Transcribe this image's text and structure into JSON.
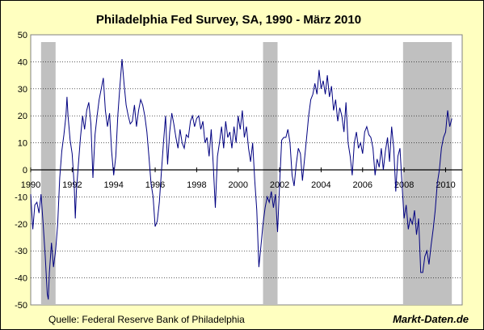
{
  "chart_data": {
    "type": "line",
    "title": "Philadelphia Fed Survey, SA, 1990 - März 2010",
    "xlabel": "",
    "ylabel": "",
    "xlim": [
      1990,
      2010.8
    ],
    "ylim": [
      -50,
      50
    ],
    "x_ticks": [
      "1990",
      "1992",
      "1994",
      "1996",
      "1998",
      "2000",
      "2002",
      "2004",
      "2006",
      "2008",
      "2010"
    ],
    "y_ticks": [
      "50",
      "40",
      "30",
      "20",
      "10",
      "0",
      "-10",
      "-20",
      "-30",
      "-40",
      "-50"
    ],
    "grid": true,
    "legend": "none",
    "recessions": [
      [
        1990.5,
        1991.2
      ],
      [
        2001.2,
        2001.9
      ],
      [
        2007.95,
        2010.3
      ]
    ],
    "series": [
      {
        "color": "#000080",
        "points": [
          [
            1990.0,
            -9
          ],
          [
            1990.1,
            -22
          ],
          [
            1990.2,
            -13
          ],
          [
            1990.3,
            -12
          ],
          [
            1990.4,
            -16
          ],
          [
            1990.5,
            -9
          ],
          [
            1990.6,
            -20
          ],
          [
            1990.7,
            -32
          ],
          [
            1990.8,
            -46
          ],
          [
            1990.85,
            -48
          ],
          [
            1990.9,
            -38
          ],
          [
            1991.0,
            -27
          ],
          [
            1991.1,
            -36
          ],
          [
            1991.2,
            -30
          ],
          [
            1991.3,
            -20
          ],
          [
            1991.4,
            -3
          ],
          [
            1991.5,
            7
          ],
          [
            1991.6,
            13
          ],
          [
            1991.7,
            20
          ],
          [
            1991.75,
            27
          ],
          [
            1991.8,
            20
          ],
          [
            1991.9,
            11
          ],
          [
            1992.0,
            6
          ],
          [
            1992.1,
            -6
          ],
          [
            1992.15,
            -18
          ],
          [
            1992.2,
            -8
          ],
          [
            1992.3,
            2
          ],
          [
            1992.4,
            12
          ],
          [
            1992.5,
            20
          ],
          [
            1992.6,
            15
          ],
          [
            1992.7,
            22
          ],
          [
            1992.8,
            25
          ],
          [
            1992.9,
            17
          ],
          [
            1993.0,
            -3
          ],
          [
            1993.1,
            13
          ],
          [
            1993.2,
            20
          ],
          [
            1993.3,
            26
          ],
          [
            1993.4,
            30
          ],
          [
            1993.5,
            34
          ],
          [
            1993.6,
            22
          ],
          [
            1993.7,
            16
          ],
          [
            1993.8,
            21
          ],
          [
            1993.9,
            7
          ],
          [
            1994.0,
            -2
          ],
          [
            1994.1,
            5
          ],
          [
            1994.2,
            20
          ],
          [
            1994.3,
            31
          ],
          [
            1994.4,
            41
          ],
          [
            1994.5,
            32
          ],
          [
            1994.6,
            24
          ],
          [
            1994.7,
            20
          ],
          [
            1994.8,
            17
          ],
          [
            1994.9,
            18
          ],
          [
            1995.0,
            24
          ],
          [
            1995.1,
            16
          ],
          [
            1995.2,
            22
          ],
          [
            1995.3,
            26
          ],
          [
            1995.4,
            24
          ],
          [
            1995.5,
            20
          ],
          [
            1995.6,
            14
          ],
          [
            1995.7,
            5
          ],
          [
            1995.8,
            -5
          ],
          [
            1995.9,
            -10
          ],
          [
            1996.0,
            -21
          ],
          [
            1996.1,
            -19
          ],
          [
            1996.2,
            -12
          ],
          [
            1996.3,
            -1
          ],
          [
            1996.4,
            10
          ],
          [
            1996.5,
            20
          ],
          [
            1996.6,
            2
          ],
          [
            1996.7,
            14
          ],
          [
            1996.8,
            21
          ],
          [
            1996.9,
            17
          ],
          [
            1997.0,
            12
          ],
          [
            1997.1,
            8
          ],
          [
            1997.2,
            15
          ],
          [
            1997.3,
            10
          ],
          [
            1997.4,
            8
          ],
          [
            1997.5,
            13
          ],
          [
            1997.6,
            12
          ],
          [
            1997.7,
            18
          ],
          [
            1997.8,
            20
          ],
          [
            1997.9,
            16
          ],
          [
            1998.0,
            19
          ],
          [
            1998.1,
            20
          ],
          [
            1998.2,
            15
          ],
          [
            1998.3,
            18
          ],
          [
            1998.4,
            10
          ],
          [
            1998.5,
            12
          ],
          [
            1998.6,
            5
          ],
          [
            1998.7,
            15
          ],
          [
            1998.8,
            2
          ],
          [
            1998.9,
            -14
          ],
          [
            1999.0,
            5
          ],
          [
            1999.1,
            10
          ],
          [
            1999.2,
            16
          ],
          [
            1999.3,
            8
          ],
          [
            1999.4,
            18
          ],
          [
            1999.5,
            12
          ],
          [
            1999.6,
            14
          ],
          [
            1999.7,
            8
          ],
          [
            1999.8,
            16
          ],
          [
            1999.9,
            10
          ],
          [
            2000.0,
            20
          ],
          [
            2000.1,
            15
          ],
          [
            2000.2,
            22
          ],
          [
            2000.3,
            12
          ],
          [
            2000.4,
            16
          ],
          [
            2000.5,
            8
          ],
          [
            2000.6,
            3
          ],
          [
            2000.7,
            10
          ],
          [
            2000.8,
            -4
          ],
          [
            2000.9,
            -15
          ],
          [
            2001.0,
            -36
          ],
          [
            2001.1,
            -28
          ],
          [
            2001.2,
            -20
          ],
          [
            2001.3,
            -14
          ],
          [
            2001.4,
            -10
          ],
          [
            2001.5,
            -12
          ],
          [
            2001.6,
            -8
          ],
          [
            2001.7,
            -14
          ],
          [
            2001.8,
            -9
          ],
          [
            2001.9,
            -23
          ],
          [
            2002.0,
            -5
          ],
          [
            2002.1,
            11
          ],
          [
            2002.2,
            12
          ],
          [
            2002.3,
            12
          ],
          [
            2002.4,
            15
          ],
          [
            2002.5,
            10
          ],
          [
            2002.6,
            -2
          ],
          [
            2002.7,
            -6
          ],
          [
            2002.8,
            2
          ],
          [
            2002.9,
            8
          ],
          [
            2003.0,
            6
          ],
          [
            2003.1,
            -4
          ],
          [
            2003.2,
            4
          ],
          [
            2003.3,
            12
          ],
          [
            2003.4,
            20
          ],
          [
            2003.5,
            26
          ],
          [
            2003.6,
            28
          ],
          [
            2003.7,
            32
          ],
          [
            2003.8,
            28
          ],
          [
            2003.9,
            37
          ],
          [
            2004.0,
            30
          ],
          [
            2004.1,
            33
          ],
          [
            2004.2,
            28
          ],
          [
            2004.3,
            35
          ],
          [
            2004.4,
            27
          ],
          [
            2004.5,
            31
          ],
          [
            2004.6,
            22
          ],
          [
            2004.7,
            26
          ],
          [
            2004.8,
            18
          ],
          [
            2004.9,
            23
          ],
          [
            2005.0,
            20
          ],
          [
            2005.1,
            14
          ],
          [
            2005.2,
            25
          ],
          [
            2005.3,
            10
          ],
          [
            2005.4,
            5
          ],
          [
            2005.5,
            -2
          ],
          [
            2005.6,
            10
          ],
          [
            2005.7,
            14
          ],
          [
            2005.8,
            8
          ],
          [
            2005.9,
            10
          ],
          [
            2006.0,
            6
          ],
          [
            2006.1,
            14
          ],
          [
            2006.2,
            16
          ],
          [
            2006.3,
            13
          ],
          [
            2006.4,
            12
          ],
          [
            2006.5,
            8
          ],
          [
            2006.6,
            -2
          ],
          [
            2006.7,
            4
          ],
          [
            2006.8,
            1
          ],
          [
            2006.9,
            8
          ],
          [
            2007.0,
            0
          ],
          [
            2007.1,
            7
          ],
          [
            2007.2,
            12
          ],
          [
            2007.3,
            3
          ],
          [
            2007.4,
            16
          ],
          [
            2007.5,
            8
          ],
          [
            2007.6,
            -8
          ],
          [
            2007.7,
            5
          ],
          [
            2007.8,
            8
          ],
          [
            2007.9,
            -5
          ],
          [
            2008.0,
            -18
          ],
          [
            2008.1,
            -13
          ],
          [
            2008.2,
            -22
          ],
          [
            2008.3,
            -18
          ],
          [
            2008.4,
            -20
          ],
          [
            2008.5,
            -15
          ],
          [
            2008.6,
            -24
          ],
          [
            2008.7,
            -18
          ],
          [
            2008.8,
            -38
          ],
          [
            2008.9,
            -38
          ],
          [
            2009.0,
            -32
          ],
          [
            2009.1,
            -30
          ],
          [
            2009.2,
            -35
          ],
          [
            2009.3,
            -28
          ],
          [
            2009.4,
            -22
          ],
          [
            2009.5,
            -15
          ],
          [
            2009.6,
            -5
          ],
          [
            2009.7,
            0
          ],
          [
            2009.8,
            8
          ],
          [
            2009.9,
            12
          ],
          [
            2010.0,
            14
          ],
          [
            2010.1,
            22
          ],
          [
            2010.2,
            16
          ],
          [
            2010.3,
            19
          ]
        ]
      }
    ],
    "source": "Quelle: Federal Reserve Bank of Philadelphia",
    "brand": "Markt-Daten.de"
  }
}
